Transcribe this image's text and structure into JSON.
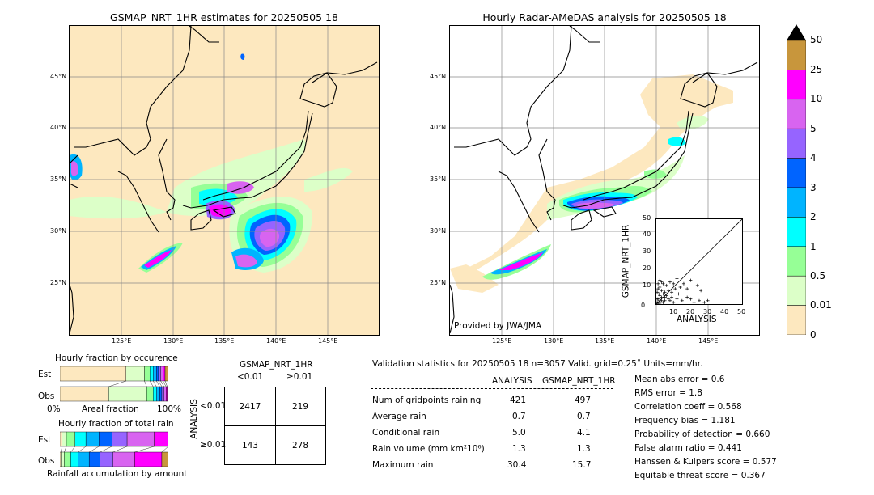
{
  "left_map": {
    "title": "GSMAP_NRT_1HR estimates for 20250505 18",
    "lat_labels": [
      "45°N",
      "40°N",
      "35°N",
      "30°N",
      "25°N"
    ],
    "lon_labels": [
      "125°E",
      "130°E",
      "135°E",
      "140°E",
      "145°E"
    ]
  },
  "right_map": {
    "title": "Hourly Radar-AMeDAS analysis for 20250505 18",
    "lat_labels": [
      "45°N",
      "40°N",
      "35°N",
      "30°N",
      "25°N"
    ],
    "lon_labels": [
      "125°E",
      "130°E",
      "135°E",
      "140°E",
      "145°E"
    ],
    "credit": "Provided by JWA/JMA"
  },
  "colorbar": {
    "labels": [
      "50",
      "25",
      "10",
      "5",
      "4",
      "3",
      "2",
      "1",
      "0.5",
      "0.01",
      "0"
    ],
    "colors": [
      "#c8963c",
      "#ff00ff",
      "#d864f0",
      "#9664ff",
      "#0064ff",
      "#00b4ff",
      "#00ffff",
      "#96ff96",
      "#dcffc8",
      "#fde8bf"
    ],
    "over_color": "#000000"
  },
  "chart_data": [
    {
      "type": "scatter",
      "xlabel": "ANALYSIS",
      "ylabel": "GSMAP_NRT_1HR",
      "xlim": [
        0,
        50
      ],
      "ylim": [
        0,
        50
      ],
      "xticks": [
        "0",
        "10",
        "20",
        "30",
        "40",
        "50"
      ],
      "yticks": [
        "0",
        "10",
        "20",
        "30",
        "40",
        "50"
      ],
      "points": [
        [
          0.5,
          1
        ],
        [
          1,
          3
        ],
        [
          1.5,
          6
        ],
        [
          2,
          10
        ],
        [
          2,
          2
        ],
        [
          3,
          8
        ],
        [
          3,
          4
        ],
        [
          4,
          12
        ],
        [
          4,
          1
        ],
        [
          5,
          7
        ],
        [
          5,
          2
        ],
        [
          6,
          5
        ],
        [
          7,
          3
        ],
        [
          8,
          2
        ],
        [
          9,
          4
        ],
        [
          10,
          1
        ],
        [
          12,
          3
        ],
        [
          13,
          6
        ],
        [
          15,
          2
        ],
        [
          18,
          4
        ],
        [
          20,
          3
        ],
        [
          22,
          1
        ],
        [
          25,
          2
        ],
        [
          28,
          1
        ],
        [
          30,
          2
        ],
        [
          14,
          10
        ],
        [
          16,
          12
        ],
        [
          18,
          9
        ],
        [
          20,
          14
        ],
        [
          24,
          11
        ],
        [
          26,
          8
        ],
        [
          12,
          15
        ],
        [
          2,
          14
        ],
        [
          1,
          12
        ],
        [
          3,
          13
        ],
        [
          0.5,
          7
        ],
        [
          1,
          9
        ],
        [
          6,
          11
        ],
        [
          8,
          13
        ],
        [
          10,
          12
        ],
        [
          4,
          6
        ],
        [
          2,
          5
        ],
        [
          3,
          2
        ],
        [
          5,
          4
        ],
        [
          7,
          8
        ],
        [
          9,
          7
        ],
        [
          11,
          9
        ],
        [
          1,
          0.5
        ],
        [
          0.5,
          3
        ],
        [
          2,
          0.5
        ]
      ]
    },
    {
      "type": "bar",
      "title": "Hourly fraction by occurence",
      "rows": [
        "Est",
        "Obs"
      ],
      "xticks": [
        "0%",
        "100%"
      ],
      "xlabel": "Areal fraction",
      "segments": {
        "Est": [
          0.61,
          0.17,
          0.05,
          0.03,
          0.03,
          0.02,
          0.02,
          0.02,
          0.02,
          0.03
        ],
        "Obs": [
          0.45,
          0.35,
          0.06,
          0.03,
          0.03,
          0.02,
          0.02,
          0.02,
          0.01,
          0.01
        ]
      }
    },
    {
      "type": "bar",
      "title": "Hourly fraction of total rain",
      "rows": [
        "Est",
        "Obs"
      ],
      "xlabel": "Rainfall accumulation by amount",
      "segments": {
        "Est": [
          0.02,
          0.04,
          0.08,
          0.1,
          0.12,
          0.12,
          0.14,
          0.25,
          0.13,
          0.0
        ],
        "Obs": [
          0.01,
          0.03,
          0.06,
          0.07,
          0.1,
          0.1,
          0.12,
          0.2,
          0.25,
          0.06
        ]
      }
    }
  ],
  "contingency": {
    "title": "GSMAP_NRT_1HR",
    "col_labels": [
      "<0.01",
      "≥0.01"
    ],
    "row_title": "ANALYSIS",
    "row_labels": [
      "<0.01",
      "≥0.01"
    ],
    "cells": [
      "2417",
      "219",
      "143",
      "278"
    ]
  },
  "validation": {
    "header": "Validation statistics for 20250505 18  n=3057 Valid. grid=0.25˚ Units=mm/hr.",
    "col_analysis": "ANALYSIS",
    "col_gsmap": "GSMAP_NRT_1HR",
    "rows": [
      {
        "label": "Num of gridpoints raining",
        "analysis": "421",
        "gsmap": "497"
      },
      {
        "label": "Average rain",
        "analysis": "0.7",
        "gsmap": "0.7"
      },
      {
        "label": "Conditional rain",
        "analysis": "5.0",
        "gsmap": "4.1"
      },
      {
        "label": "Rain volume (mm km²10⁶)",
        "analysis": "1.3",
        "gsmap": "1.3"
      },
      {
        "label": "Maximum rain",
        "analysis": "30.4",
        "gsmap": "15.7"
      }
    ],
    "scores": [
      "Mean abs error =    0.6",
      "RMS error =    1.8",
      "Correlation coeff =  0.568",
      "Frequency bias =  1.181",
      "Probability of detection =  0.660",
      "False alarm ratio =  0.441",
      "Hanssen & Kuipers score =  0.577",
      "Equitable threat score =  0.367"
    ]
  }
}
